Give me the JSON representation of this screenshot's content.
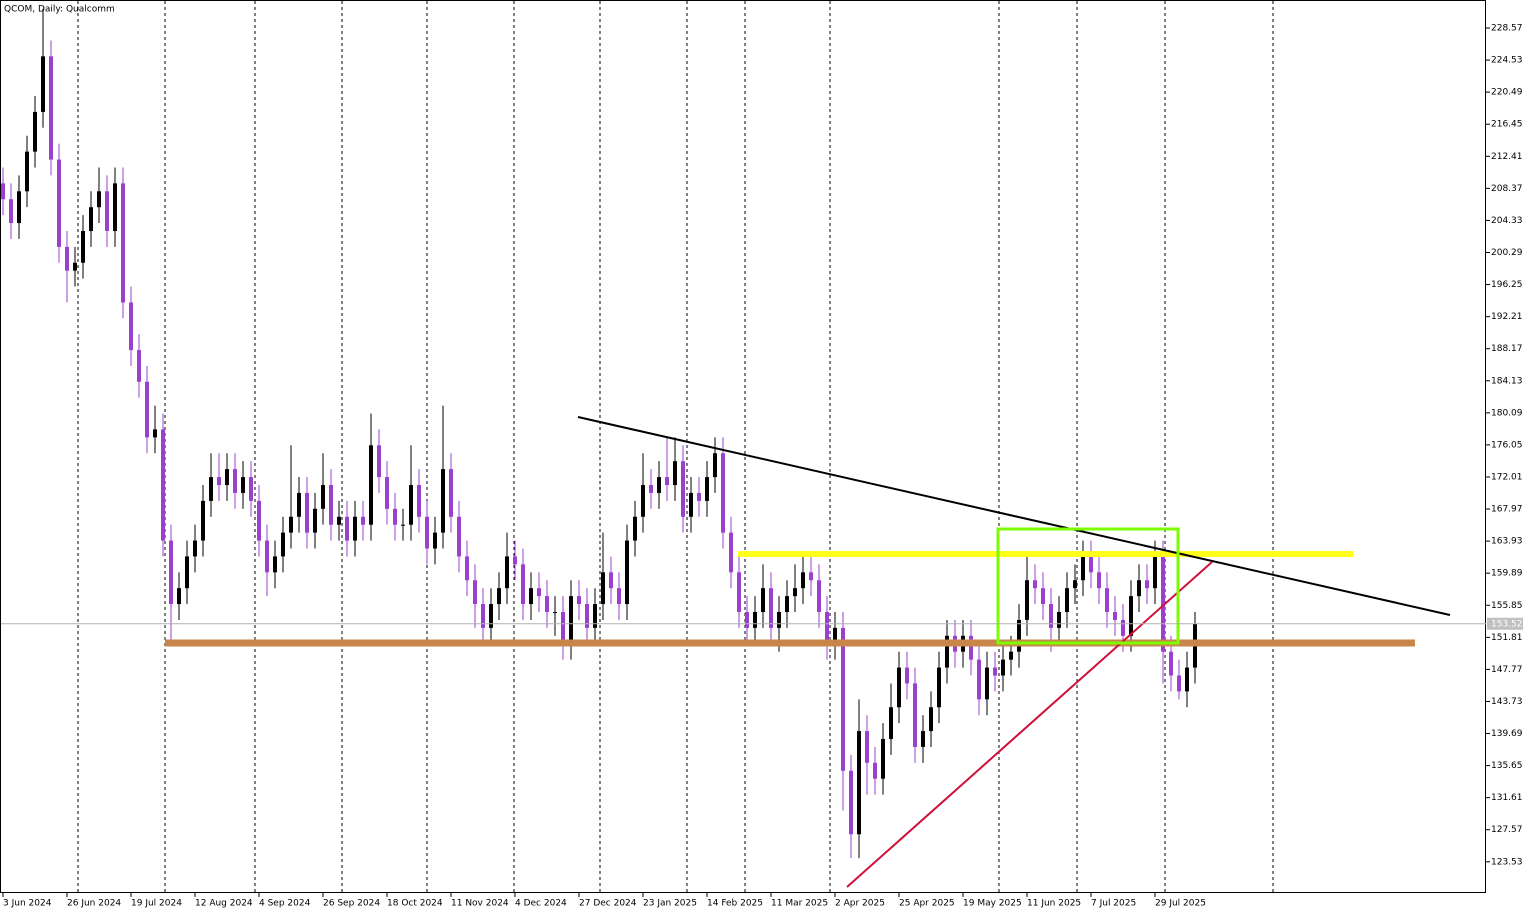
{
  "chart_data": {
    "type": "candlestick",
    "title": "QCOM, Daily: Qualcomm",
    "categories": [
      "3 Jun 2024",
      null,
      null,
      null,
      null,
      null,
      null,
      null,
      "26 Jun 2024",
      null,
      null,
      null,
      null,
      null,
      null,
      null,
      "19 Jul 2024",
      null,
      null,
      null,
      null,
      null,
      null,
      null,
      "12 Aug 2024",
      null,
      null,
      null,
      null,
      null,
      null,
      null,
      "4 Sep 2024",
      null,
      null,
      null,
      null,
      null,
      null,
      null,
      "26 Sep 2024",
      null,
      null,
      null,
      null,
      null,
      null,
      null,
      "18 Oct 2024",
      null,
      null,
      null,
      null,
      null,
      null,
      null,
      "11 Nov 2024",
      null,
      null,
      null,
      null,
      null,
      null,
      null,
      "4 Dec 2024",
      null,
      null,
      null,
      null,
      null,
      null,
      null,
      "27 Dec 2024",
      null,
      null,
      null,
      null,
      null,
      null,
      null,
      "23 Jan 2025",
      null,
      null,
      null,
      null,
      null,
      null,
      null,
      "14 Feb 2025",
      null,
      null,
      null,
      null,
      null,
      null,
      null,
      "11 Mar 2025",
      null,
      null,
      null,
      null,
      null,
      null,
      null,
      "2 Apr 2025",
      null,
      null,
      null,
      null,
      null,
      null,
      null,
      "25 Apr 2025",
      null,
      null,
      null,
      null,
      null,
      null,
      null,
      "19 May 2025",
      null,
      null,
      null,
      null,
      null,
      null,
      null,
      "11 Jun 2025",
      null,
      null,
      null,
      null,
      null,
      null,
      null,
      "7 Jul 2025",
      null,
      null,
      null,
      null,
      null,
      null,
      null,
      "29 Jul 2025",
      null,
      null,
      null,
      null,
      null
    ],
    "open": [
      209,
      207,
      204,
      208,
      213,
      218,
      225,
      212,
      201,
      198,
      199,
      203,
      206,
      208,
      203,
      209,
      194,
      188,
      184,
      177,
      178,
      164,
      156,
      158,
      162,
      164,
      169,
      172,
      171,
      173,
      170,
      172,
      169,
      164,
      160,
      162,
      165,
      167,
      170,
      165,
      168,
      171,
      166,
      167,
      164,
      167,
      166,
      176,
      172,
      168,
      166,
      166,
      171,
      167,
      163,
      165,
      173,
      167,
      162,
      159,
      156,
      153,
      156,
      158,
      162,
      161,
      156,
      158,
      157,
      155,
      155,
      151,
      157,
      156,
      153,
      156,
      160,
      158,
      156,
      164,
      167,
      171,
      170,
      172,
      171,
      174,
      167,
      170,
      169,
      172,
      175,
      165,
      160,
      155,
      153,
      155,
      158,
      153,
      155,
      157,
      158,
      160,
      159,
      155,
      151,
      153,
      135,
      127,
      140,
      136,
      134,
      139,
      143,
      148,
      146,
      138,
      140,
      143,
      148,
      152,
      150,
      152,
      149,
      144,
      148,
      147,
      149,
      150,
      154,
      159,
      158,
      156,
      153,
      155,
      158,
      159,
      162,
      160,
      158,
      155,
      154,
      152,
      157,
      159,
      158,
      162,
      150,
      147,
      145,
      148
    ],
    "high": [
      211,
      209,
      210,
      215,
      220,
      231,
      227,
      214,
      203,
      201,
      205,
      208,
      211,
      210,
      211,
      211,
      196,
      190,
      186,
      181,
      180,
      166,
      160,
      164,
      166,
      171,
      175,
      175,
      175,
      175,
      174,
      174,
      171,
      166,
      164,
      167,
      176,
      172,
      172,
      170,
      175,
      173,
      169,
      169,
      169,
      169,
      180,
      178,
      174,
      170,
      168,
      176,
      173,
      169,
      167,
      181,
      175,
      169,
      164,
      161,
      158,
      158,
      160,
      165,
      164,
      163,
      160,
      160,
      159,
      157,
      157,
      159,
      159,
      158,
      158,
      165,
      162,
      160,
      166,
      169,
      175,
      173,
      174,
      177,
      177,
      176,
      172,
      172,
      174,
      177,
      177,
      167,
      162,
      157,
      157,
      161,
      160,
      157,
      159,
      161,
      162,
      162,
      161,
      157,
      155,
      155,
      137,
      144,
      142,
      138,
      141,
      146,
      150,
      150,
      148,
      142,
      145,
      150,
      154,
      154,
      154,
      154,
      151,
      150,
      150,
      151,
      152,
      156,
      162,
      161,
      160,
      158,
      157,
      160,
      161,
      164,
      164,
      162,
      160,
      157,
      156,
      159,
      161,
      161,
      164,
      164,
      152,
      149,
      150,
      155
    ],
    "low": [
      205,
      202,
      202,
      206,
      211,
      216,
      210,
      199,
      194,
      196,
      197,
      201,
      204,
      201,
      201,
      192,
      186,
      182,
      175,
      175,
      162,
      151,
      154,
      156,
      160,
      162,
      167,
      169,
      169,
      168,
      168,
      167,
      162,
      157,
      158,
      160,
      163,
      165,
      163,
      163,
      166,
      164,
      164,
      162,
      162,
      164,
      164,
      170,
      166,
      164,
      164,
      164,
      165,
      161,
      161,
      163,
      165,
      160,
      157,
      153,
      151,
      151,
      154,
      156,
      159,
      154,
      154,
      155,
      153,
      152,
      149,
      149,
      154,
      151,
      151,
      154,
      156,
      154,
      154,
      162,
      165,
      168,
      168,
      169,
      169,
      165,
      165,
      167,
      167,
      170,
      163,
      158,
      153,
      151,
      151,
      153,
      151,
      150,
      153,
      155,
      156,
      157,
      153,
      149,
      149,
      130,
      124,
      124,
      132,
      132,
      132,
      137,
      141,
      144,
      136,
      136,
      138,
      141,
      146,
      148,
      148,
      147,
      142,
      142,
      145,
      145,
      147,
      148,
      152,
      156,
      154,
      150,
      151,
      153,
      156,
      157,
      158,
      156,
      153,
      152,
      150,
      150,
      155,
      156,
      156,
      146,
      145,
      144,
      143,
      146
    ],
    "close": [
      207,
      204,
      208,
      213,
      218,
      225,
      212,
      201,
      198,
      199,
      203,
      206,
      208,
      203,
      209,
      194,
      188,
      184,
      177,
      178,
      164,
      156,
      158,
      162,
      164,
      169,
      172,
      171,
      173,
      170,
      172,
      169,
      164,
      160,
      162,
      165,
      167,
      170,
      165,
      168,
      171,
      166,
      167,
      164,
      167,
      166,
      176,
      172,
      168,
      166,
      166,
      171,
      167,
      163,
      165,
      173,
      167,
      162,
      159,
      156,
      153,
      156,
      158,
      162,
      161,
      156,
      158,
      157,
      155,
      155,
      151,
      157,
      156,
      153,
      156,
      160,
      158,
      156,
      164,
      167,
      171,
      170,
      172,
      171,
      174,
      167,
      170,
      169,
      172,
      175,
      165,
      160,
      155,
      153,
      155,
      158,
      153,
      155,
      157,
      158,
      160,
      159,
      155,
      151,
      153,
      135,
      127,
      140,
      136,
      134,
      139,
      143,
      148,
      146,
      138,
      140,
      143,
      148,
      152,
      150,
      152,
      149,
      144,
      148,
      147,
      149,
      150,
      154,
      159,
      158,
      156,
      153,
      155,
      158,
      159,
      162,
      160,
      158,
      155,
      154,
      152,
      157,
      159,
      158,
      162,
      150,
      147,
      145,
      148,
      153.52
    ],
    "up_color": "#000000",
    "down_color": "#9a3fd0",
    "ylim": [
      119.6,
      232.1
    ],
    "yticks": [
      228.57,
      224.53,
      220.49,
      216.45,
      212.41,
      208.37,
      204.33,
      200.29,
      196.25,
      192.21,
      188.17,
      184.13,
      180.09,
      176.05,
      172.01,
      167.97,
      163.93,
      159.89,
      155.85,
      151.81,
      147.77,
      143.73,
      139.69,
      135.65,
      131.61,
      127.57,
      123.53
    ],
    "last_price": 153.52
  }
}
